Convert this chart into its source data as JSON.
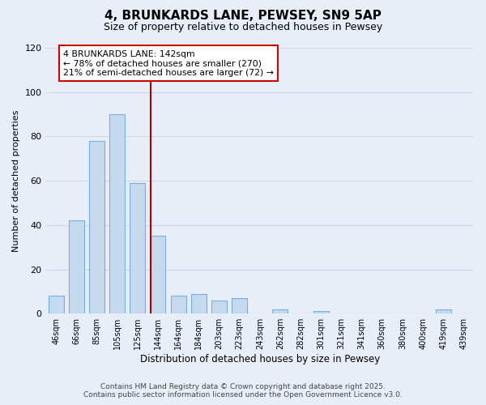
{
  "title": "4, BRUNKARDS LANE, PEWSEY, SN9 5AP",
  "subtitle": "Size of property relative to detached houses in Pewsey",
  "xlabel": "Distribution of detached houses by size in Pewsey",
  "ylabel": "Number of detached properties",
  "categories": [
    "46sqm",
    "66sqm",
    "85sqm",
    "105sqm",
    "125sqm",
    "144sqm",
    "164sqm",
    "184sqm",
    "203sqm",
    "223sqm",
    "243sqm",
    "262sqm",
    "282sqm",
    "301sqm",
    "321sqm",
    "341sqm",
    "360sqm",
    "380sqm",
    "400sqm",
    "419sqm",
    "439sqm"
  ],
  "values": [
    8,
    42,
    78,
    90,
    59,
    35,
    8,
    9,
    6,
    7,
    0,
    2,
    0,
    1,
    0,
    0,
    0,
    0,
    0,
    2,
    0
  ],
  "bar_color": "#c5d9ef",
  "bar_edge_color": "#7aade0",
  "vline_color": "#aa0000",
  "annotation_title": "4 BRUNKARDS LANE: 142sqm",
  "annotation_line1": "← 78% of detached houses are smaller (270)",
  "annotation_line2": "21% of semi-detached houses are larger (72) →",
  "annotation_box_color": "#ffffff",
  "annotation_box_edge": "#cc0000",
  "ylim": [
    0,
    120
  ],
  "yticks": [
    0,
    20,
    40,
    60,
    80,
    100,
    120
  ],
  "grid_color": "#d0d8e8",
  "bg_color": "#e8eef8",
  "footer1": "Contains HM Land Registry data © Crown copyright and database right 2025.",
  "footer2": "Contains public sector information licensed under the Open Government Licence v3.0."
}
